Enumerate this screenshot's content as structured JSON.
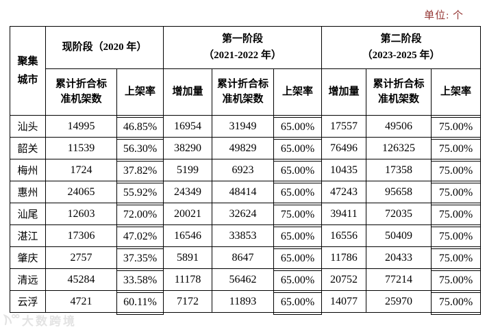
{
  "page": {
    "unit_label": "单位: 个",
    "watermark": "大数跨境"
  },
  "colors": {
    "unit_label_red": "#943634",
    "table_border": "#000000",
    "watermark_gray": "#e3e3e3"
  },
  "table": {
    "corner": {
      "line1": "聚集",
      "line2": "城市"
    },
    "groups": [
      {
        "title_lines": [
          "现阶段（2020 年）"
        ]
      },
      {
        "title_lines": [
          "第一阶段",
          "（2021-2022 年）"
        ]
      },
      {
        "title_lines": [
          "第二阶段",
          "（2023-2025 年）"
        ]
      }
    ],
    "sub_headers": [
      "累计折合标准机架数",
      "上架率",
      "增加量",
      "累计折合标准机架数",
      "上架率",
      "增加量",
      "累计折合标准机架数",
      "上架率"
    ],
    "rows": [
      {
        "city": "汕头",
        "values": [
          "14995",
          "46.85%",
          "16954",
          "31949",
          "65.00%",
          "17557",
          "49506",
          "75.00%"
        ]
      },
      {
        "city": "韶关",
        "values": [
          "11539",
          "56.30%",
          "38290",
          "49829",
          "65.00%",
          "76496",
          "126325",
          "75.00%"
        ]
      },
      {
        "city": "梅州",
        "values": [
          "1724",
          "37.82%",
          "5199",
          "6923",
          "65.00%",
          "10435",
          "17358",
          "75.00%"
        ]
      },
      {
        "city": "惠州",
        "values": [
          "24065",
          "55.92%",
          "24349",
          "48414",
          "65.00%",
          "47243",
          "95658",
          "75.00%"
        ]
      },
      {
        "city": "汕尾",
        "values": [
          "12603",
          "72.00%",
          "20021",
          "32624",
          "75.00%",
          "39411",
          "72035",
          "75.00%"
        ]
      },
      {
        "city": "湛江",
        "values": [
          "17306",
          "47.02%",
          "16546",
          "33853",
          "65.00%",
          "16556",
          "50409",
          "75.00%"
        ]
      },
      {
        "city": "肇庆",
        "values": [
          "2757",
          "37.35%",
          "5891",
          "8647",
          "65.00%",
          "11786",
          "20433",
          "75.00%"
        ]
      },
      {
        "city": "清远",
        "values": [
          "45284",
          "33.58%",
          "11178",
          "56462",
          "65.00%",
          "20752",
          "77214",
          "75.00%"
        ]
      },
      {
        "city": "云浮",
        "values": [
          "4721",
          "60.11%",
          "7172",
          "11893",
          "65.00%",
          "14077",
          "25970",
          "75.00%"
        ]
      }
    ]
  }
}
